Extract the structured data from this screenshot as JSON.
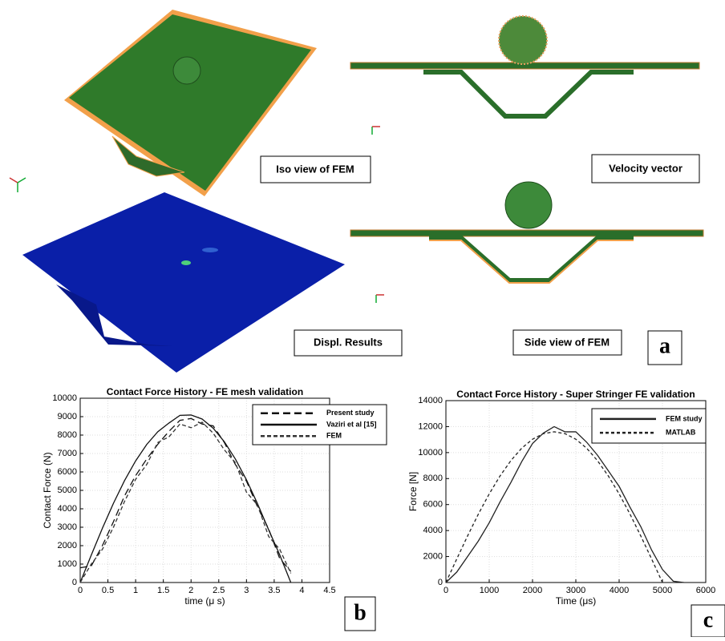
{
  "panel_a": {
    "labels": [
      "Iso view of FEM",
      "Velocity vector",
      "Displ. Results",
      "Side view of FEM"
    ],
    "letter": "a"
  },
  "chart_data": [
    {
      "type": "line",
      "title": "Contact Force History - FE mesh validation",
      "letter": "b",
      "x_label": "time (μ s)",
      "y_label": "Contact Force (N)",
      "x": [
        0,
        0.2,
        0.4,
        0.6,
        0.8,
        1.0,
        1.2,
        1.4,
        1.6,
        1.8,
        2.0,
        2.2,
        2.4,
        2.6,
        2.8,
        3.0,
        3.2,
        3.4,
        3.6,
        3.8,
        4.0
      ],
      "series": [
        {
          "name": "Present study",
          "color": "#111111",
          "dash": "9,5",
          "values": [
            800,
            900,
            2000,
            3300,
            4700,
            5800,
            6700,
            7500,
            8200,
            8800,
            8900,
            8600,
            8500,
            7600,
            6400,
            5500,
            4100,
            2900,
            1300,
            600,
            null
          ]
        },
        {
          "name": "Vaziri et al [15]",
          "color": "#111111",
          "dash": "none",
          "values": [
            0,
            1490,
            2940,
            4300,
            5530,
            6600,
            7490,
            8180,
            8650,
            9070,
            9090,
            8870,
            8370,
            7640,
            6700,
            5570,
            4270,
            2860,
            1500,
            0,
            null
          ]
        },
        {
          "name": "FEM",
          "color": "#333333",
          "dash": "5,3",
          "values": [
            0,
            1000,
            1800,
            3000,
            4400,
            5600,
            6400,
            7600,
            7900,
            8600,
            8400,
            8700,
            8100,
            7200,
            6500,
            4900,
            4200,
            2500,
            1800,
            500,
            null
          ]
        }
      ],
      "xlim": [
        0,
        4.5
      ],
      "xticks": [
        0,
        0.5,
        1,
        1.5,
        2,
        2.5,
        3,
        3.5,
        4,
        4.5
      ],
      "ylim": [
        0,
        10000
      ],
      "yticks": [
        0,
        1000,
        2000,
        3000,
        4000,
        5000,
        6000,
        7000,
        8000,
        9000,
        10000
      ],
      "grid": true
    },
    {
      "type": "line",
      "title": "Contact Force History - Super Stringer FE validation",
      "letter": "c",
      "x_label": "Time (μs)",
      "y_label": "Force [N]",
      "x": [
        0,
        250,
        500,
        750,
        1000,
        1250,
        1500,
        1750,
        2000,
        2250,
        2500,
        2750,
        3000,
        3250,
        3500,
        3750,
        4000,
        4250,
        4500,
        4750,
        5000,
        5250,
        5500
      ],
      "series": [
        {
          "name": "FEM study",
          "color": "#222222",
          "dash": "none",
          "values": [
            0,
            800,
            2000,
            3200,
            4600,
            6200,
            7700,
            9300,
            10700,
            11500,
            12000,
            11600,
            11600,
            10800,
            9800,
            8600,
            7400,
            5800,
            4300,
            2500,
            1000,
            100,
            0
          ]
        },
        {
          "name": "MATLAB",
          "color": "#222222",
          "dash": "4,3",
          "values": [
            0,
            1810,
            3580,
            5270,
            6820,
            8200,
            9380,
            10340,
            11030,
            11460,
            11600,
            11460,
            11030,
            10340,
            9380,
            8200,
            6820,
            5270,
            3580,
            1810,
            0,
            null,
            null
          ]
        }
      ],
      "xlim": [
        0,
        6000
      ],
      "xticks": [
        0,
        1000,
        2000,
        3000,
        4000,
        5000,
        6000
      ],
      "ylim": [
        0,
        14000
      ],
      "yticks": [
        0,
        2000,
        4000,
        6000,
        8000,
        10000,
        12000,
        14000
      ],
      "grid": true
    }
  ]
}
